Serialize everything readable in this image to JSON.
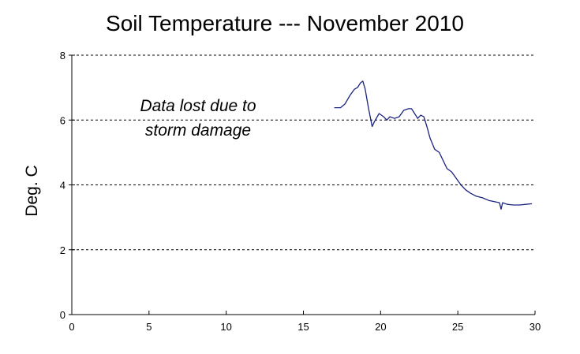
{
  "chart_data": {
    "type": "line",
    "title": "Soil Temperature --- November 2010",
    "xlabel": "",
    "ylabel": "Deg. C",
    "xlim": [
      0,
      30
    ],
    "ylim": [
      0,
      8
    ],
    "xticks": [
      0,
      5,
      10,
      15,
      20,
      25,
      30
    ],
    "yticks": [
      0,
      2,
      4,
      6,
      8
    ],
    "grid": "horizontal dashed",
    "line_color": "#1a237e",
    "annotation": [
      "Data lost due to",
      "storm damage"
    ],
    "series": [
      {
        "x": [
          17.0,
          17.4,
          17.7,
          18.0,
          18.3,
          18.5,
          18.7,
          18.85,
          19.0,
          19.2,
          19.45,
          19.6,
          19.9,
          20.2,
          20.4,
          20.6,
          20.9,
          21.2,
          21.5,
          21.8,
          22.0,
          22.2,
          22.4,
          22.6,
          22.8,
          23.0,
          23.2,
          23.5,
          23.8,
          24.0,
          24.3,
          24.6,
          24.9,
          25.2,
          25.5,
          25.8,
          26.2,
          26.6,
          27.0,
          27.4,
          27.7,
          27.8,
          27.9,
          28.2,
          28.6,
          29.0,
          29.4,
          29.8
        ],
        "y": [
          6.38,
          6.38,
          6.5,
          6.75,
          6.95,
          7.0,
          7.15,
          7.2,
          6.95,
          6.4,
          5.8,
          5.95,
          6.2,
          6.1,
          6.0,
          6.1,
          6.05,
          6.1,
          6.3,
          6.35,
          6.35,
          6.2,
          6.05,
          6.15,
          6.1,
          5.8,
          5.45,
          5.1,
          5.0,
          4.8,
          4.5,
          4.4,
          4.2,
          4.0,
          3.85,
          3.75,
          3.65,
          3.6,
          3.52,
          3.48,
          3.45,
          3.25,
          3.45,
          3.4,
          3.38,
          3.38,
          3.4,
          3.42
        ]
      }
    ]
  }
}
